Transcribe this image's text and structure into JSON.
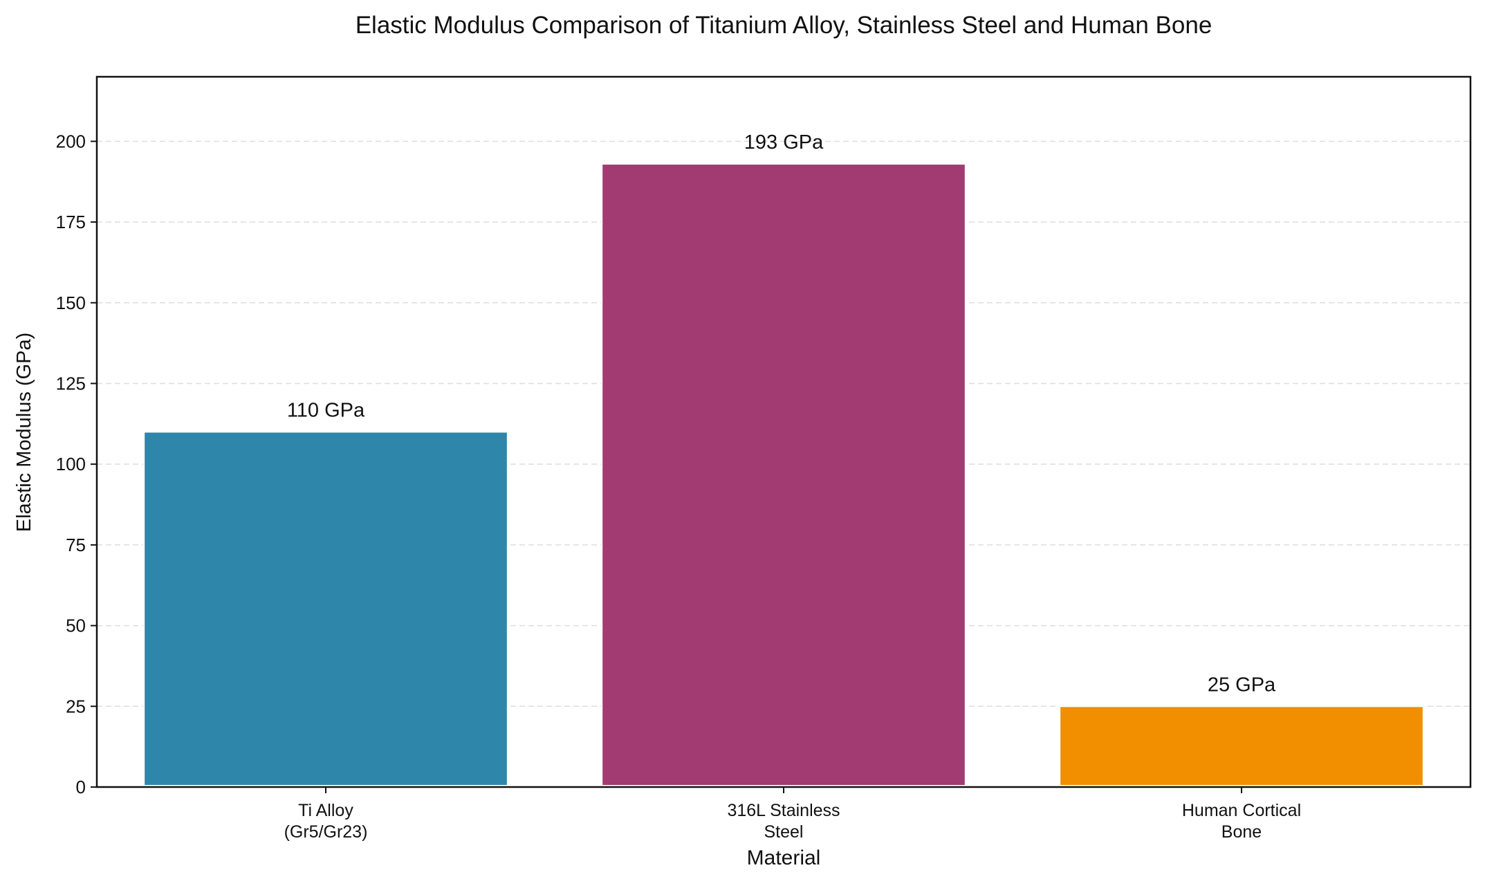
{
  "chart_data": {
    "type": "bar",
    "title": "Elastic Modulus Comparison of Titanium Alloy, Stainless Steel and Human Bone",
    "xlabel": "Material",
    "ylabel": "Elastic Modulus (GPa)",
    "categories": [
      [
        "Ti Alloy",
        "(Gr5/Gr23)"
      ],
      [
        "316L Stainless",
        "Steel"
      ],
      [
        "Human Cortical",
        "Bone"
      ]
    ],
    "values": [
      110,
      193,
      25
    ],
    "data_labels": [
      "110 GPa",
      "193 GPa",
      "25 GPa"
    ],
    "colors": [
      "#2E86AB",
      "#A23B72",
      "#F18F01"
    ],
    "ylim": [
      0,
      220
    ],
    "yticks": [
      0,
      25,
      50,
      75,
      100,
      125,
      150,
      175,
      200
    ],
    "grid": "horizontal dashed",
    "legend": "none"
  }
}
